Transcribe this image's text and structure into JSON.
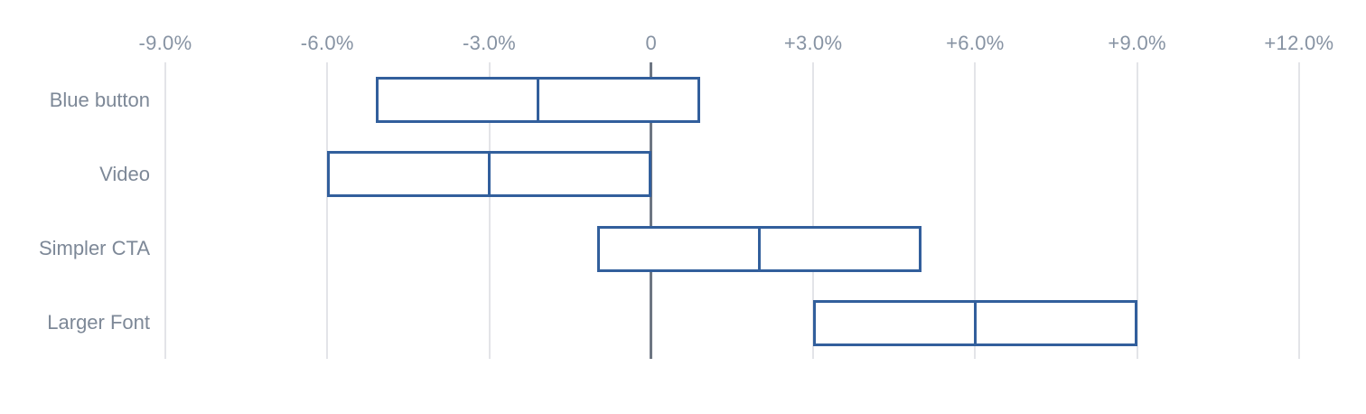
{
  "chart_data": {
    "type": "range-bar",
    "orientation": "horizontal",
    "title": "",
    "xlabel": "",
    "ylabel": "",
    "unit": "%",
    "axis_position": "top",
    "grid": true,
    "legend": false,
    "xlim": [
      -9,
      12
    ],
    "x_ticks": [
      {
        "value": -9,
        "label": "-9.0%"
      },
      {
        "value": -6,
        "label": "-6.0%"
      },
      {
        "value": -3,
        "label": "-3.0%"
      },
      {
        "value": 0,
        "label": "0"
      },
      {
        "value": 3,
        "label": "+3.0%"
      },
      {
        "value": 6,
        "label": "+6.0%"
      },
      {
        "value": 9,
        "label": "+9.0%"
      },
      {
        "value": 12,
        "label": "+12.0%"
      }
    ],
    "categories": [
      "Blue button",
      "Video",
      "Simpler CTA",
      "Larger Font"
    ],
    "series": [
      {
        "name": "Blue button",
        "low": -5.1,
        "mid": -2.1,
        "high": 0.9
      },
      {
        "name": "Video",
        "low": -6.0,
        "mid": -3.0,
        "high": 0.0
      },
      {
        "name": "Simpler CTA",
        "low": -1.0,
        "mid": 2.0,
        "high": 5.0
      },
      {
        "name": "Larger Font",
        "low": 3.0,
        "mid": 6.0,
        "high": 9.0
      }
    ],
    "colors": {
      "bar_border": "#325F9C",
      "bar_fill": "#FFFFFF",
      "gridline": "#E3E4E8",
      "zero_line": "#6E7683",
      "axis_label": "#8793A3",
      "category_label": "#7D8897"
    }
  }
}
